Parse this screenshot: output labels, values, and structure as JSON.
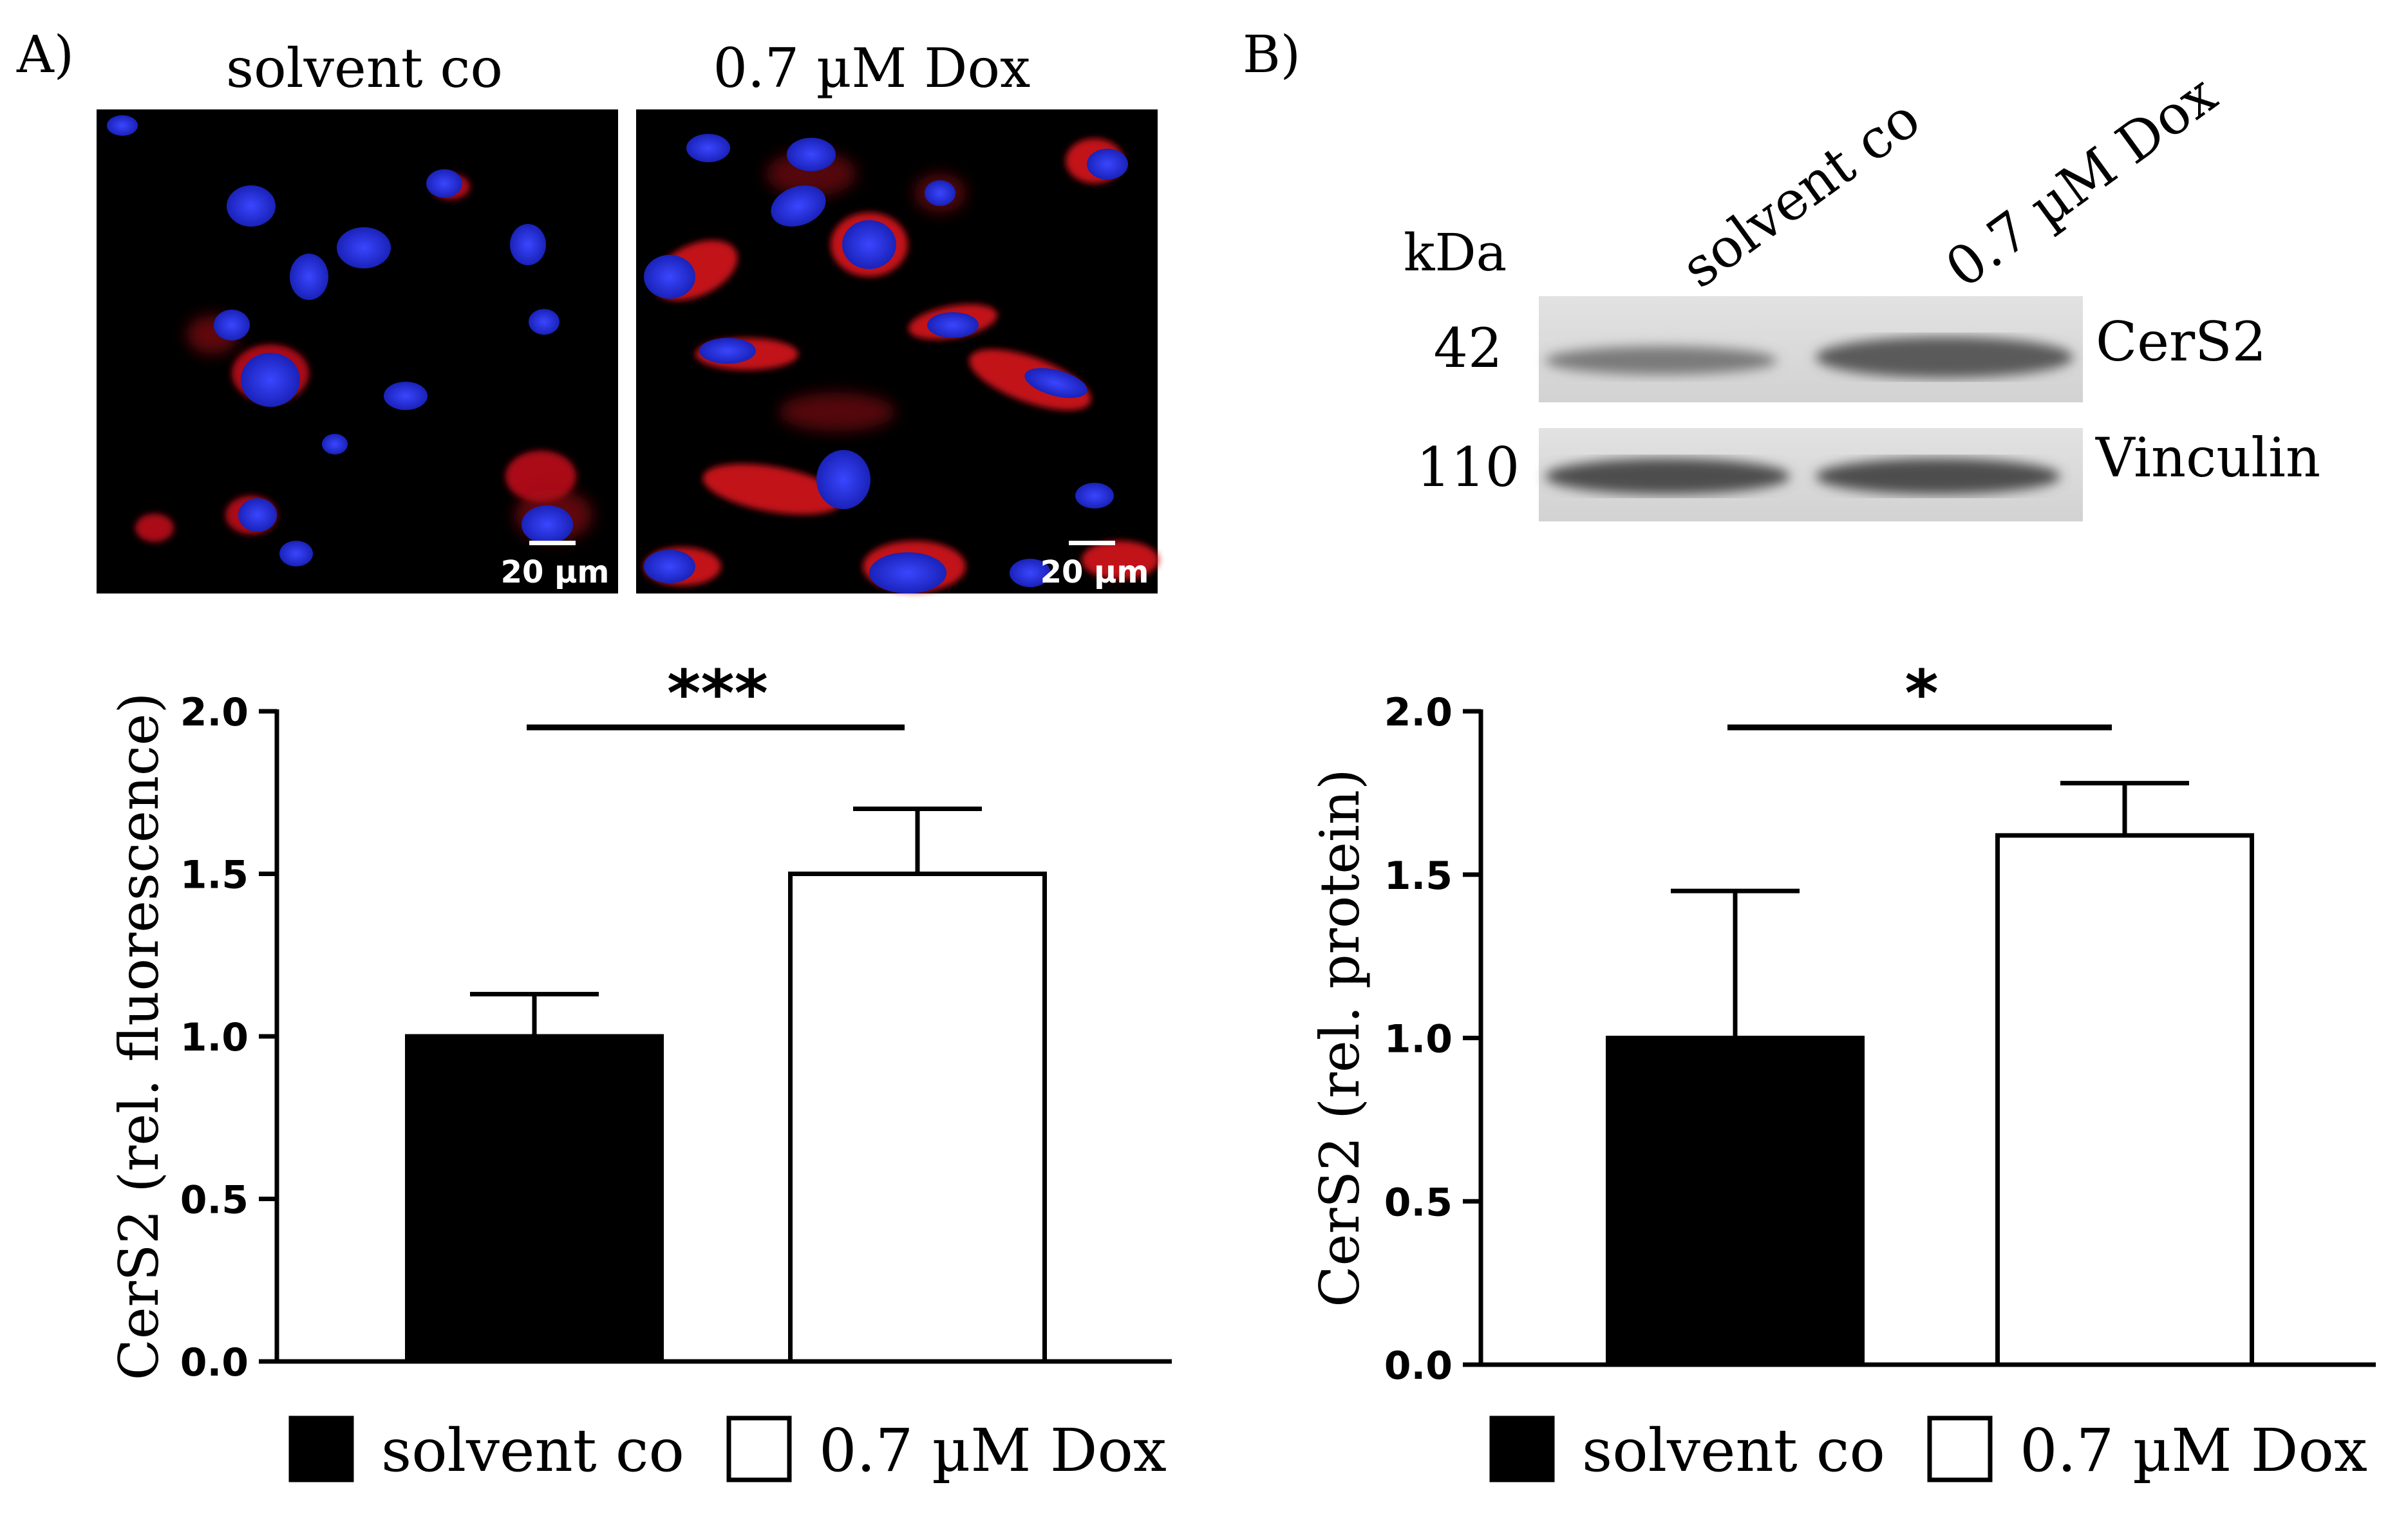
{
  "panels": {
    "A": {
      "label": "A)",
      "micrographs": [
        {
          "title": "solvent co",
          "scale_bar": "20 µm"
        },
        {
          "title": "0.7 µM Dox",
          "scale_bar": "20 µm"
        }
      ]
    },
    "B": {
      "label": "B)",
      "blot": {
        "kda_header": "kDa",
        "lane_labels": [
          "solvent co",
          "0.7 µM Dox"
        ],
        "rows": [
          {
            "kda": "42",
            "protein": "CerS2"
          },
          {
            "kda": "110",
            "protein": "Vinculin"
          }
        ]
      }
    }
  },
  "chart_data": [
    {
      "type": "bar",
      "categories": [
        "solvent co",
        "0.7 µM Dox"
      ],
      "values": [
        1.0,
        1.5
      ],
      "errors": [
        0.13,
        0.2
      ],
      "ylabel": "CerS2 (rel. fluorescence)",
      "ylim": [
        0,
        2.0
      ],
      "yticks": [
        "0.0",
        "0.5",
        "1.0",
        "1.5",
        "2.0"
      ],
      "significance": "***",
      "bar_fill": [
        "#000000",
        "#ffffff"
      ],
      "legend": [
        "solvent co",
        "0.7 µM Dox"
      ],
      "legend_position": "bottom"
    },
    {
      "type": "bar",
      "categories": [
        "solvent co",
        "0.7 µM Dox"
      ],
      "values": [
        1.0,
        1.62
      ],
      "errors": [
        0.45,
        0.16
      ],
      "ylabel": "CerS2 (rel. protein)",
      "ylim": [
        0,
        2.0
      ],
      "yticks": [
        "0.0",
        "0.5",
        "1.0",
        "1.5",
        "2.0"
      ],
      "significance": "*",
      "bar_fill": [
        "#000000",
        "#ffffff"
      ],
      "legend": [
        "solvent co",
        "0.7 µM Dox"
      ],
      "legend_position": "bottom"
    }
  ],
  "colors": {
    "micrograph_background": "#000000",
    "nucleus": "#1f2ad6",
    "cers2_stain": "#e0141e",
    "blot_background": "#d6d6d6",
    "band": "#555555"
  }
}
